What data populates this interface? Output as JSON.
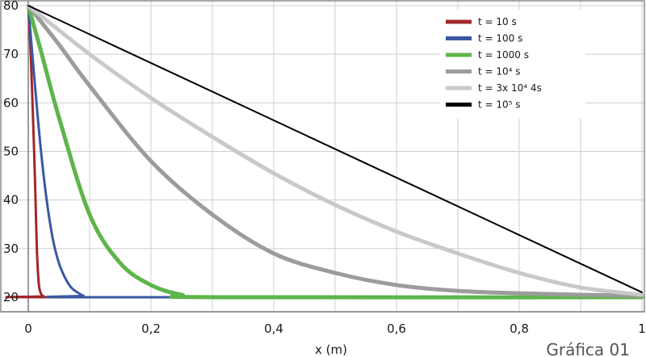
{
  "caption": "Gráfica 01",
  "chart_data": {
    "type": "line",
    "title": "",
    "xlabel": "x (m)",
    "ylabel": "",
    "xlim": [
      0,
      1
    ],
    "ylim": [
      17,
      80.5
    ],
    "grid": true,
    "legend_position": "top-right",
    "x_ticks": [
      0,
      0.1,
      0.2,
      0.3,
      0.4,
      0.5,
      0.6,
      0.7,
      0.8,
      0.9,
      1
    ],
    "x_tick_labels": [
      "0",
      "",
      "0,2",
      "",
      "0,4",
      "",
      "0,6",
      "",
      "0,8",
      "",
      "1"
    ],
    "y_ticks": [
      20,
      30,
      40,
      50,
      60,
      70,
      80
    ],
    "y_tick_labels": [
      "20",
      "30",
      "40",
      "50",
      "60",
      "70",
      "80"
    ],
    "series": [
      {
        "name": "t = 10 s",
        "color": "#a1282b",
        "x": [
          0,
          0.004,
          0.008,
          0.011,
          0.014,
          0.017,
          0.02,
          0.025,
          0.04,
          1
        ],
        "y": [
          80,
          70,
          56,
          44,
          30,
          23,
          21,
          20.2,
          20,
          20
        ]
      },
      {
        "name": "t = 100 s",
        "color": "#3b57a3",
        "x": [
          0,
          0.01,
          0.02,
          0.03,
          0.04,
          0.05,
          0.06,
          0.07,
          0.08,
          0.09,
          0.1,
          1
        ],
        "y": [
          80,
          65,
          51,
          40,
          32,
          27,
          24,
          22,
          21,
          20.3,
          20,
          20
        ]
      },
      {
        "name": "t = 1000 s",
        "color": "#5db54b",
        "x": [
          0,
          0.02,
          0.05,
          0.1,
          0.15,
          0.2,
          0.25,
          0.3,
          1
        ],
        "y": [
          80,
          71,
          57,
          37,
          27,
          22.5,
          20.5,
          20,
          20
        ]
      },
      {
        "name": "t = 10⁴ s",
        "color": "#9c9c9c",
        "x": [
          0,
          0.05,
          0.1,
          0.2,
          0.3,
          0.4,
          0.5,
          0.6,
          0.7,
          0.8,
          0.9,
          1
        ],
        "y": [
          80,
          72,
          63.5,
          48,
          37,
          29,
          25,
          22.5,
          21.3,
          20.8,
          20.5,
          20.3
        ]
      },
      {
        "name": "t = 3x 10⁴ 4s",
        "color": "#c9c9c9",
        "x": [
          0,
          0.1,
          0.2,
          0.3,
          0.4,
          0.5,
          0.6,
          0.7,
          0.8,
          0.9,
          1
        ],
        "y": [
          80,
          70,
          61,
          53,
          45.5,
          39,
          33.5,
          29,
          25,
          22,
          20.5
        ]
      },
      {
        "name": "t = 10⁵ s",
        "color": "#000000",
        "x": [
          0,
          1
        ],
        "y": [
          80,
          21
        ]
      }
    ]
  }
}
